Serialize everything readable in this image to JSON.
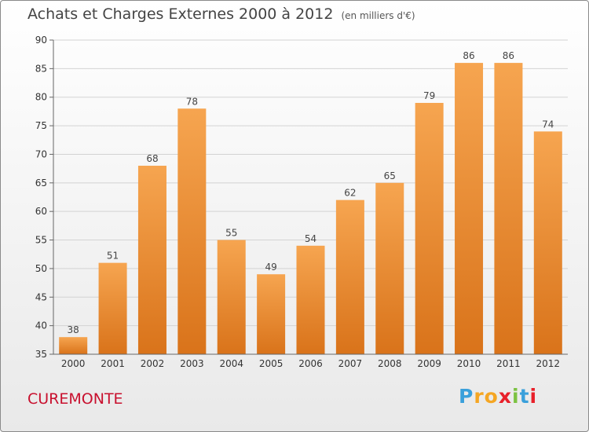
{
  "header": {
    "title": "Achats et Charges Externes 2000 à 2012",
    "unit": "(en milliers d'€)"
  },
  "footer": {
    "commune": "CUREMONTE",
    "logo_letters": [
      "P",
      "r",
      "o",
      "x",
      "i",
      "t",
      "i"
    ],
    "logo_colors": [
      "#3aa0db",
      "#f5a623",
      "#f5a623",
      "#e8202a",
      "#7cc242",
      "#3aa0db",
      "#e8202a"
    ]
  },
  "chart_data": {
    "type": "bar",
    "categories": [
      "2000",
      "2001",
      "2002",
      "2003",
      "2004",
      "2005",
      "2006",
      "2007",
      "2008",
      "2009",
      "2010",
      "2011",
      "2012"
    ],
    "values": [
      38,
      51,
      68,
      78,
      55,
      49,
      54,
      62,
      65,
      79,
      86,
      86,
      74
    ],
    "ylim": [
      35,
      90
    ],
    "yticks": [
      35,
      40,
      45,
      50,
      55,
      60,
      65,
      70,
      75,
      80,
      85,
      90
    ],
    "grid": true,
    "bar_color_top": "#f6a550",
    "bar_color_bottom": "#d9731a"
  }
}
